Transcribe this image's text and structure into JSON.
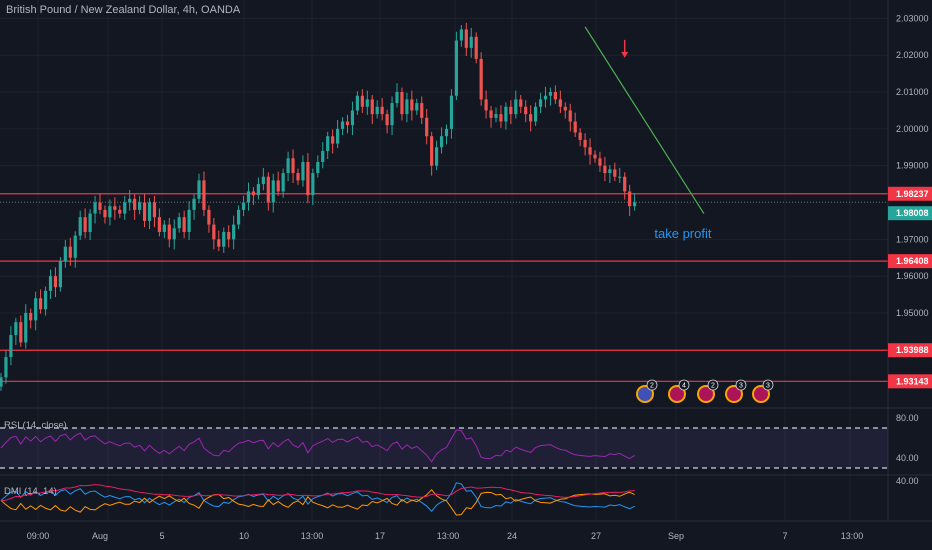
{
  "header": {
    "title": "British Pound / New Zealand Dollar, 4h, OANDA"
  },
  "colors": {
    "up": "#26a69a",
    "down": "#ef5350",
    "level": "#f23645",
    "trend": "#4caf50",
    "rsi": "#9c27b0",
    "dmi_plus": "#2196f3",
    "dmi_minus": "#ff9800",
    "adx": "#e91e63"
  },
  "chart_data": {
    "type": "candlestick",
    "price_ylim": [
      1.925,
      2.035
    ],
    "price_ticks": [
      1.95,
      1.96,
      1.97,
      1.99,
      2.0,
      2.01,
      2.02,
      2.03
    ],
    "price_tick_labels": [
      "1.95000",
      "1.96000",
      "1.97000",
      "1.99000",
      "2.00000",
      "2.01000",
      "2.02000",
      "2.03000"
    ],
    "x_tick_labels": [
      "09:00",
      "Aug",
      "5",
      "10",
      "13:00",
      "17",
      "13:00",
      "24",
      "27",
      "Sep",
      "7",
      "13:00"
    ],
    "current_price": {
      "value": 1.98008,
      "label": "1.98008"
    },
    "levels": [
      {
        "value": 1.98237,
        "label": "1.98237"
      },
      {
        "value": 1.96408,
        "label": "1.96408"
      },
      {
        "value": 1.93988,
        "label": "1.93988"
      },
      {
        "value": 1.93143,
        "label": "1.93143"
      }
    ],
    "trendline": {
      "from": [
        118,
        2.0277
      ],
      "to": [
        142,
        1.977
      ]
    },
    "annotation": {
      "text": "take profit",
      "index": 132,
      "price": 1.9715
    },
    "arrow": {
      "index": 126,
      "price": 2.022,
      "direction": "down"
    },
    "closes": [
      1.9325,
      1.938,
      1.944,
      1.9475,
      1.942,
      1.95,
      1.948,
      1.954,
      1.951,
      1.956,
      1.96,
      1.957,
      1.964,
      1.968,
      1.965,
      1.971,
      1.976,
      1.972,
      1.977,
      1.98,
      1.978,
      1.976,
      1.979,
      1.978,
      1.977,
      1.98,
      1.981,
      1.978,
      1.98,
      1.975,
      1.98,
      1.976,
      1.972,
      1.974,
      1.97,
      1.973,
      1.976,
      1.972,
      1.978,
      1.981,
      1.986,
      1.978,
      1.974,
      1.97,
      1.968,
      1.972,
      1.97,
      1.974,
      1.978,
      1.98,
      1.983,
      1.982,
      1.985,
      1.987,
      1.98,
      1.986,
      1.983,
      1.988,
      1.992,
      1.988,
      1.986,
      1.991,
      1.982,
      1.988,
      1.991,
      1.994,
      1.998,
      1.996,
      2.0,
      2.002,
      2.001,
      2.005,
      2.009,
      2.006,
      2.008,
      2.004,
      2.006,
      2.004,
      2.001,
      2.007,
      2.01,
      2.004,
      2.008,
      2.005,
      2.007,
      2.003,
      1.998,
      1.99,
      1.995,
      1.998,
      2.0,
      2.009,
      2.024,
      2.027,
      2.022,
      2.025,
      2.019,
      2.008,
      2.005,
      2.003,
      2.004,
      2.002,
      2.006,
      2.004,
      2.008,
      2.006,
      2.004,
      2.002,
      2.006,
      2.008,
      2.009,
      2.01,
      2.008,
      2.006,
      2.005,
      2.002,
      1.999,
      1.997,
      1.995,
      1.993,
      1.992,
      1.99,
      1.988,
      1.989,
      1.987,
      1.987,
      1.983,
      1.979,
      1.98
    ],
    "rsi": {
      "label": "RSI (14, close)",
      "ylim": [
        25,
        88
      ],
      "bands": [
        70,
        30
      ],
      "tick_labels": [
        "80.00",
        "40.00"
      ],
      "tick_values": [
        80,
        40
      ]
    },
    "dmi": {
      "label": "DMI (14, 14)",
      "tick_labels": [
        "40.00"
      ],
      "tick_values": [
        40
      ]
    },
    "events_count": [
      2,
      4,
      2,
      3,
      3
    ]
  }
}
